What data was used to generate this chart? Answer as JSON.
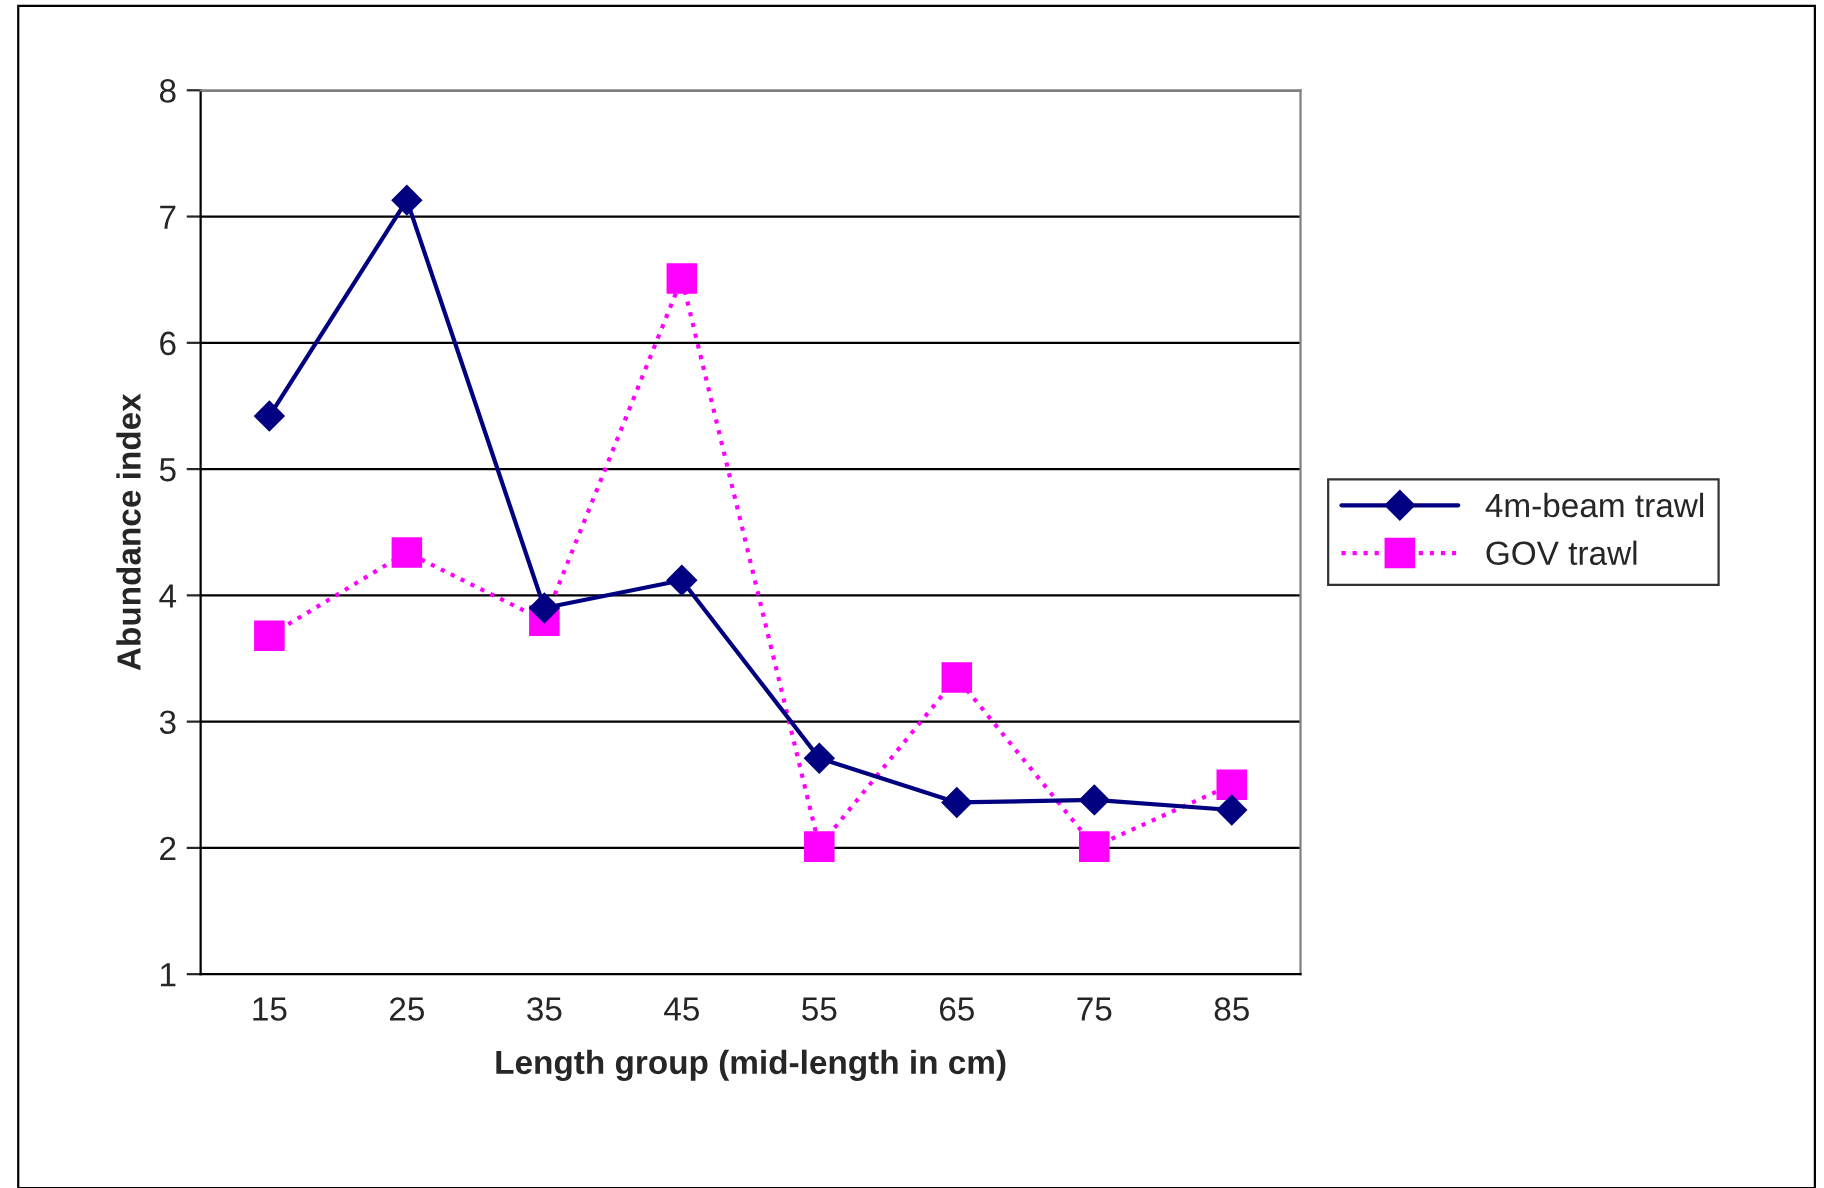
{
  "chart_data": {
    "type": "line",
    "xlabel": "Length group (mid-length in cm)",
    "ylabel": "Abundance index",
    "categories": [
      "15",
      "25",
      "35",
      "45",
      "55",
      "65",
      "75",
      "85"
    ],
    "series": [
      {
        "name": "4m-beam trawl",
        "color": "#000080",
        "marker": "diamond",
        "line_style": "solid",
        "values": [
          5.42,
          7.13,
          3.9,
          4.12,
          2.71,
          2.36,
          2.38,
          2.3
        ]
      },
      {
        "name": "GOV trawl",
        "color": "#ff00ff",
        "marker": "square",
        "line_style": "dotted",
        "values": [
          3.68,
          4.34,
          3.8,
          6.51,
          2.01,
          3.35,
          2.01,
          2.5
        ]
      }
    ],
    "ylim": [
      1,
      8
    ],
    "yticks": [
      1,
      2,
      3,
      4,
      5,
      6,
      7,
      8
    ],
    "grid": "y",
    "legend": "right"
  }
}
